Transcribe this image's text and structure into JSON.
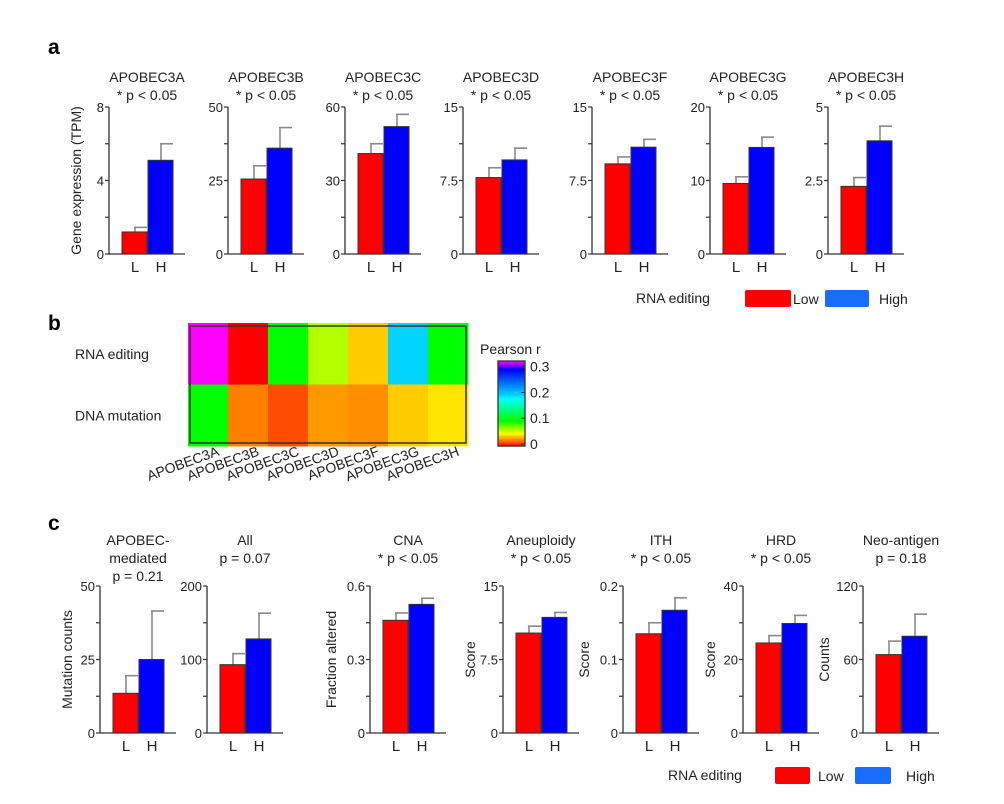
{
  "panels": {
    "a": "a",
    "b": "b",
    "c": "c"
  },
  "colors": {
    "low": "#ff0000",
    "high": "#0000ff",
    "legend_high": "#1a6cff",
    "error": "#8a8a8a"
  },
  "legend_a": {
    "title": "RNA editing",
    "low": "Low",
    "high": "High"
  },
  "legend_c": {
    "title": "RNA editing",
    "low": "Low",
    "high": "High"
  },
  "chart_data": [
    {
      "type": "bar",
      "panel": "a",
      "title": "APOBEC3A",
      "subtitle": "* p < 0.05",
      "ylabel": "Gene expression (TPM)",
      "categories": [
        "L",
        "H"
      ],
      "values": [
        1.2,
        5.1
      ],
      "error_upper": [
        1.45,
        6.0
      ],
      "ylim": [
        0,
        8
      ],
      "yticks": [
        "0",
        "4",
        "8"
      ]
    },
    {
      "type": "bar",
      "panel": "a",
      "title": "APOBEC3B",
      "subtitle": "* p < 0.05",
      "categories": [
        "L",
        "H"
      ],
      "values": [
        25.5,
        36
      ],
      "error_upper": [
        30,
        43
      ],
      "ylim": [
        0,
        50
      ],
      "yticks": [
        "0",
        "25",
        "50"
      ]
    },
    {
      "type": "bar",
      "panel": "a",
      "title": "APOBEC3C",
      "subtitle": "* p < 0.05",
      "categories": [
        "L",
        "H"
      ],
      "values": [
        41,
        52
      ],
      "error_upper": [
        45,
        57
      ],
      "ylim": [
        0,
        60
      ],
      "yticks": [
        "0",
        "30",
        "60"
      ]
    },
    {
      "type": "bar",
      "panel": "a",
      "title": "APOBEC3D",
      "subtitle": "* p < 0.05",
      "categories": [
        "L",
        "H"
      ],
      "values": [
        7.8,
        9.6
      ],
      "error_upper": [
        8.8,
        10.8
      ],
      "ylim": [
        0,
        15
      ],
      "yticks": [
        "0",
        "7.5",
        "15"
      ]
    },
    {
      "type": "bar",
      "panel": "a",
      "title": "APOBEC3F",
      "subtitle": "* p < 0.05",
      "categories": [
        "L",
        "H"
      ],
      "values": [
        9.2,
        10.9
      ],
      "error_upper": [
        9.9,
        11.7
      ],
      "ylim": [
        0,
        15
      ],
      "yticks": [
        "0",
        "7.5",
        "15"
      ]
    },
    {
      "type": "bar",
      "panel": "a",
      "title": "APOBEC3G",
      "subtitle": "* p < 0.05",
      "categories": [
        "L",
        "H"
      ],
      "values": [
        9.6,
        14.5
      ],
      "error_upper": [
        10.5,
        15.9
      ],
      "ylim": [
        0,
        20
      ],
      "yticks": [
        "0",
        "10",
        "20"
      ]
    },
    {
      "type": "bar",
      "panel": "a",
      "title": "APOBEC3H",
      "subtitle": "* p < 0.05",
      "categories": [
        "L",
        "H"
      ],
      "values": [
        2.3,
        3.85
      ],
      "error_upper": [
        2.6,
        4.35
      ],
      "ylim": [
        0,
        5
      ],
      "yticks": [
        "0",
        "2.5",
        "5"
      ]
    },
    {
      "type": "heatmap",
      "panel": "b",
      "rows": [
        "RNA editing",
        "DNA mutation"
      ],
      "columns": [
        "APOBEC3A",
        "APOBEC3B",
        "APOBEC3C",
        "APOBEC3D",
        "APOBEC3F",
        "APOBEC3G",
        "APOBEC3H"
      ],
      "values": [
        [
          0.33,
          0.0,
          0.1,
          0.065,
          0.04,
          0.2,
          0.1
        ],
        [
          0.1,
          0.025,
          0.015,
          0.03,
          0.028,
          0.04,
          0.045
        ]
      ],
      "colorbar": {
        "title": "Pearson r",
        "ticks": [
          "0",
          "0.1",
          "0.2",
          "0.3"
        ],
        "range": [
          0,
          0.33
        ],
        "colormap": "rainbow red-yellow-green-cyan-blue-magenta"
      }
    },
    {
      "type": "bar",
      "panel": "c",
      "title": "APOBEC-",
      "title2": "mediated",
      "subtitle": "p = 0.21",
      "ylabel": "Mutation counts",
      "categories": [
        "L",
        "H"
      ],
      "values": [
        13.5,
        25
      ],
      "error_upper": [
        19.5,
        41.5
      ],
      "ylim": [
        0,
        50
      ],
      "yticks": [
        "0",
        "25",
        "50"
      ]
    },
    {
      "type": "bar",
      "panel": "c",
      "title": "All",
      "subtitle": "p = 0.07",
      "categories": [
        "L",
        "H"
      ],
      "values": [
        93,
        128
      ],
      "error_upper": [
        108,
        163
      ],
      "ylim": [
        0,
        200
      ],
      "yticks": [
        "0",
        "100",
        "200"
      ]
    },
    {
      "type": "bar",
      "panel": "c",
      "title": "CNA",
      "subtitle": "* p < 0.05",
      "ylabel": "Fraction altered",
      "categories": [
        "L",
        "H"
      ],
      "values": [
        0.46,
        0.525
      ],
      "error_upper": [
        0.49,
        0.55
      ],
      "ylim": [
        0,
        0.6
      ],
      "yticks": [
        "0",
        "0.3",
        "0.6"
      ]
    },
    {
      "type": "bar",
      "panel": "c",
      "title": "Aneuploidy",
      "subtitle": "* p < 0.05",
      "ylabel": "Score",
      "categories": [
        "L",
        "H"
      ],
      "values": [
        10.2,
        11.8
      ],
      "error_upper": [
        10.9,
        12.3
      ],
      "ylim": [
        0,
        15
      ],
      "yticks": [
        "0",
        "7.5",
        "15"
      ]
    },
    {
      "type": "bar",
      "panel": "c",
      "title": "ITH",
      "subtitle": "* p < 0.05",
      "ylabel": "Score",
      "categories": [
        "L",
        "H"
      ],
      "values": [
        0.135,
        0.167
      ],
      "error_upper": [
        0.15,
        0.184
      ],
      "ylim": [
        0,
        0.2
      ],
      "yticks": [
        "0",
        "0.1",
        "0.2"
      ]
    },
    {
      "type": "bar",
      "panel": "c",
      "title": "HRD",
      "subtitle": "* p < 0.05",
      "ylabel": "Score",
      "categories": [
        "L",
        "H"
      ],
      "values": [
        24.5,
        29.8
      ],
      "error_upper": [
        26.5,
        32
      ],
      "ylim": [
        0,
        40
      ],
      "yticks": [
        "0",
        "20",
        "40"
      ]
    },
    {
      "type": "bar",
      "panel": "c",
      "title": "Neo-antigen",
      "subtitle": "p = 0.18",
      "ylabel": "Counts",
      "categories": [
        "L",
        "H"
      ],
      "values": [
        64,
        79
      ],
      "error_upper": [
        75,
        97
      ],
      "ylim": [
        0,
        120
      ],
      "yticks": [
        "0",
        "60",
        "120"
      ]
    }
  ]
}
